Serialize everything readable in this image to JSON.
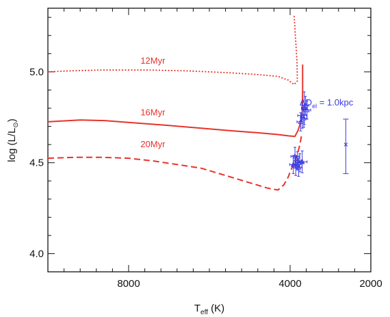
{
  "chart_data": {
    "type": "line",
    "xlabel_main": "T",
    "xlabel_sub": "eff",
    "xlabel_unit": " (K)",
    "ylabel_main": "log (L/L",
    "ylabel_sub": "⊙",
    "ylabel_close": ")",
    "xlim": [
      10000,
      2000
    ],
    "ylim": [
      3.9,
      5.35
    ],
    "xticks": [
      {
        "value": 8000,
        "label": "8000"
      },
      {
        "value": 4000,
        "label": "4000"
      },
      {
        "value": 2000,
        "label": "2000"
      }
    ],
    "yticks": [
      {
        "value": 4.0,
        "label": "4.0"
      },
      {
        "value": 4.5,
        "label": "4.5"
      },
      {
        "value": 5.0,
        "label": "5.0"
      }
    ],
    "x_minor_step": 400,
    "y_minor_step": 0.1,
    "series": [
      {
        "name": "12Myr",
        "style": "dotted",
        "color": "#e8322a",
        "label_at": [
          7400,
          5.045
        ],
        "x": [
          10000,
          9500,
          8700,
          7500,
          6500,
          5500,
          4800,
          4300,
          4050,
          3900,
          3820,
          3830,
          3870,
          3900
        ],
        "y": [
          5.0,
          5.005,
          5.01,
          5.01,
          5.005,
          4.995,
          4.985,
          4.975,
          4.955,
          4.93,
          4.95,
          5.06,
          5.2,
          5.31
        ]
      },
      {
        "name": "16Myr",
        "style": "solid",
        "color": "#e8322a",
        "label_at": [
          7400,
          4.76
        ],
        "x": [
          10000,
          9200,
          8600,
          7900,
          7000,
          6200,
          5400,
          4800,
          4300,
          4050,
          3880,
          3800,
          3740,
          3700,
          3690,
          3690
        ],
        "y": [
          4.725,
          4.735,
          4.732,
          4.72,
          4.705,
          4.69,
          4.675,
          4.665,
          4.655,
          4.648,
          4.645,
          4.68,
          4.72,
          4.78,
          4.9,
          5.04
        ]
      },
      {
        "name": "20Myr",
        "style": "dashed",
        "color": "#e8322a",
        "label_at": [
          7400,
          4.585
        ],
        "x": [
          10000,
          9300,
          8700,
          8000,
          7400,
          6800,
          6200,
          5600,
          5000,
          4550,
          4300,
          4150,
          4050,
          3980,
          3900,
          3830,
          3780,
          3740,
          3710
        ],
        "y": [
          4.525,
          4.53,
          4.53,
          4.525,
          4.51,
          4.49,
          4.47,
          4.43,
          4.39,
          4.36,
          4.35,
          4.38,
          4.42,
          4.46,
          4.5,
          4.54,
          4.58,
          4.62,
          4.66
        ]
      }
    ],
    "error_points": [
      {
        "x": 3620,
        "y": 4.815,
        "xerr": 80,
        "yerr": 0.05
      },
      {
        "x": 3580,
        "y": 4.79,
        "xerr": 90,
        "yerr": 0.05
      },
      {
        "x": 3700,
        "y": 4.76,
        "xerr": 110,
        "yerr": 0.07
      },
      {
        "x": 3660,
        "y": 4.745,
        "xerr": 80,
        "yerr": 0.05
      },
      {
        "x": 3740,
        "y": 4.725,
        "xerr": 90,
        "yerr": 0.05
      },
      {
        "x": 3650,
        "y": 4.8,
        "xerr": 70,
        "yerr": 0.09
      },
      {
        "x": 3880,
        "y": 4.535,
        "xerr": 100,
        "yerr": 0.05
      },
      {
        "x": 3820,
        "y": 4.51,
        "xerr": 100,
        "yerr": 0.05
      },
      {
        "x": 3760,
        "y": 4.5,
        "xerr": 90,
        "yerr": 0.05
      },
      {
        "x": 3700,
        "y": 4.505,
        "xerr": 120,
        "yerr": 0.06
      },
      {
        "x": 3860,
        "y": 4.48,
        "xerr": 90,
        "yerr": 0.05
      },
      {
        "x": 3790,
        "y": 4.475,
        "xerr": 80,
        "yerr": 0.05
      },
      {
        "x": 3920,
        "y": 4.49,
        "xerr": 90,
        "yerr": 0.05
      }
    ],
    "annotation": {
      "text": "ΔD",
      "sub": "el",
      "rest": " = 1.0kpc",
      "at": [
        3100,
        4.815
      ],
      "bar": {
        "x": 2620,
        "y": 4.6,
        "yerr_up": 0.14,
        "yerr_down": 0.16
      }
    }
  }
}
